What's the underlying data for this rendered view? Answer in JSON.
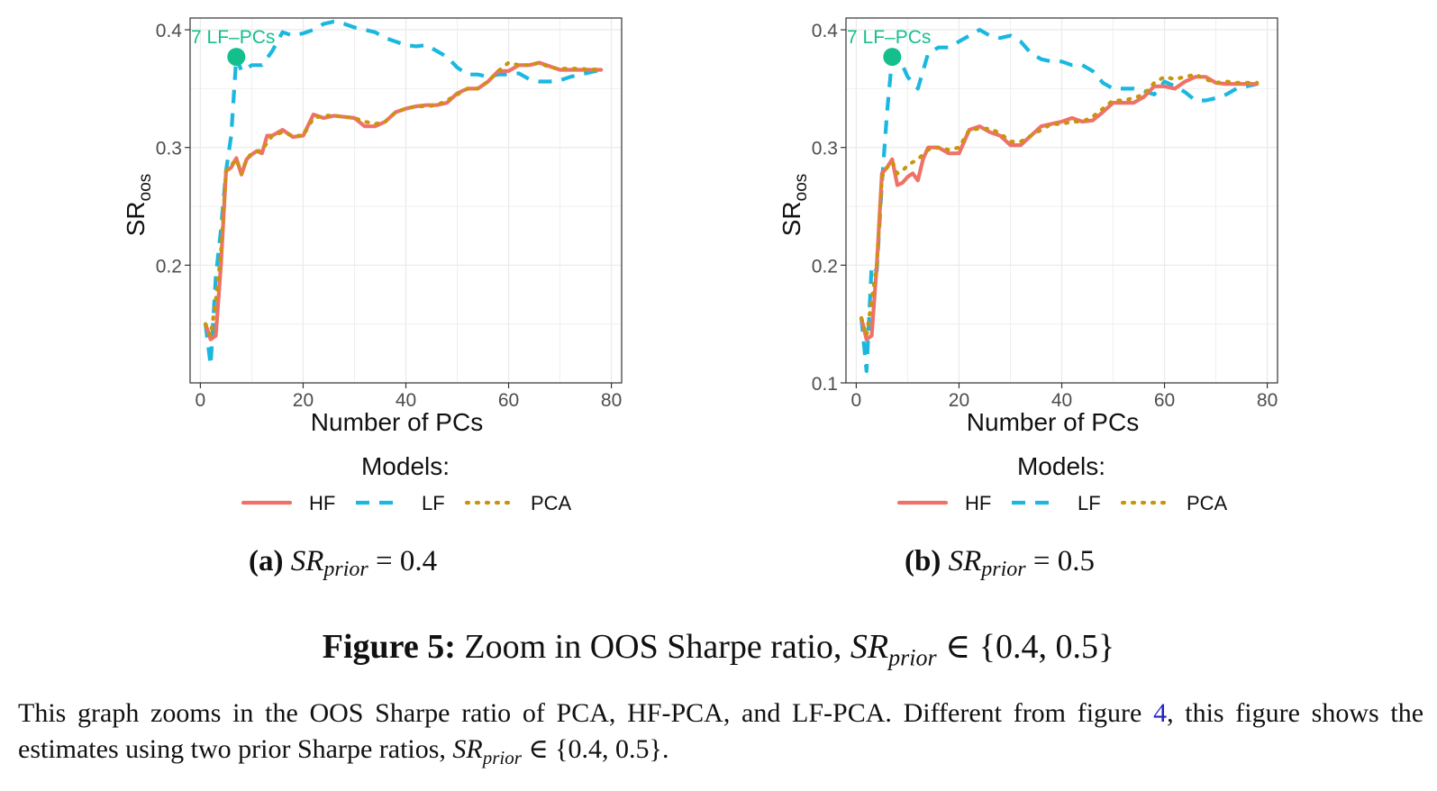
{
  "figure": {
    "label": "Figure 5:",
    "title_text": "Zoom in OOS Sharpe ratio, ",
    "title_math": "SR",
    "title_math_sub": "prior",
    "title_math_tail": " ∈ {0.4, 0.5}",
    "body_part1": "This graph zooms in the OOS Sharpe ratio of PCA, HF-PCA, and LF-PCA. Different from figure ",
    "body_link": "4",
    "body_part2": ", this figure shows the estimates using two prior Sharpe ratios, ",
    "body_math": "SR",
    "body_math_sub": "prior",
    "body_tail": " ∈ {0.4, 0.5}.",
    "link_color": "#2323c9"
  },
  "legend": {
    "title": "Models:",
    "entries": [
      "HF",
      "LF",
      "PCA"
    ]
  },
  "colors": {
    "HF": "#f07167",
    "LF": "#1ab8e0",
    "PCA": "#c8960c",
    "marker": "#14bf8d",
    "grid": "#ebebeb",
    "panel_border": "#333333"
  },
  "chart_data": [
    {
      "type": "line",
      "subcaption_label": "(a)",
      "subcaption_math": "SR",
      "subcaption_sub": "prior",
      "subcaption_value": " = 0.4",
      "xlabel": "Number of PCs",
      "ylabel": "SR",
      "ylabel_sub": "oos",
      "xlim": [
        -2,
        82
      ],
      "ylim": [
        0.1,
        0.41
      ],
      "xticks": [
        0,
        20,
        40,
        60,
        80
      ],
      "xtick_labels": [
        "0",
        "20",
        "40",
        "60",
        "80"
      ],
      "yticks": [
        0.2,
        0.3,
        0.4
      ],
      "ytick_labels": [
        "0.2",
        "0.3",
        "0.4"
      ],
      "grid": true,
      "legend_position": "bottom",
      "annotation": {
        "text": "7 LF–PCs",
        "x": 7,
        "y": 0.377
      },
      "series": [
        {
          "name": "HF",
          "style": "solid",
          "x": [
            1,
            2,
            3,
            4,
            5,
            6,
            7,
            8,
            9,
            10,
            11,
            12,
            13,
            14,
            16,
            18,
            20,
            22,
            24,
            26,
            28,
            30,
            32,
            34,
            36,
            38,
            40,
            42,
            44,
            46,
            48,
            50,
            52,
            54,
            56,
            58,
            60,
            62,
            64,
            66,
            68,
            70,
            72,
            74,
            76,
            78
          ],
          "y": [
            0.15,
            0.137,
            0.14,
            0.2,
            0.28,
            0.283,
            0.291,
            0.277,
            0.29,
            0.294,
            0.297,
            0.295,
            0.31,
            0.31,
            0.315,
            0.309,
            0.31,
            0.328,
            0.325,
            0.327,
            0.326,
            0.325,
            0.318,
            0.318,
            0.322,
            0.33,
            0.333,
            0.335,
            0.336,
            0.336,
            0.338,
            0.346,
            0.35,
            0.35,
            0.356,
            0.365,
            0.365,
            0.37,
            0.37,
            0.372,
            0.369,
            0.366,
            0.366,
            0.366,
            0.366,
            0.366
          ]
        },
        {
          "name": "LF",
          "style": "dashed",
          "x": [
            1,
            2,
            3,
            4,
            5,
            6,
            7,
            8,
            9,
            10,
            12,
            14,
            16,
            18,
            20,
            22,
            24,
            26,
            28,
            30,
            32,
            34,
            36,
            38,
            40,
            42,
            44,
            46,
            48,
            50,
            52,
            54,
            56,
            58,
            60,
            62,
            64,
            66,
            68,
            70,
            72,
            74,
            76,
            78
          ],
          "y": [
            0.15,
            0.115,
            0.19,
            0.23,
            0.28,
            0.31,
            0.377,
            0.365,
            0.367,
            0.37,
            0.37,
            0.382,
            0.398,
            0.395,
            0.397,
            0.4,
            0.405,
            0.407,
            0.405,
            0.402,
            0.4,
            0.398,
            0.393,
            0.39,
            0.387,
            0.386,
            0.387,
            0.382,
            0.377,
            0.368,
            0.362,
            0.362,
            0.36,
            0.362,
            0.362,
            0.363,
            0.358,
            0.356,
            0.356,
            0.357,
            0.36,
            0.362,
            0.364,
            0.366
          ]
        },
        {
          "name": "PCA",
          "style": "dotted",
          "x": [
            1,
            2,
            3,
            4,
            5,
            6,
            7,
            8,
            9,
            10,
            12,
            14,
            16,
            18,
            20,
            22,
            24,
            26,
            28,
            30,
            32,
            34,
            36,
            38,
            40,
            42,
            44,
            46,
            48,
            50,
            52,
            54,
            56,
            58,
            60,
            62,
            64,
            66,
            68,
            70,
            72,
            74,
            76,
            78
          ],
          "y": [
            0.15,
            0.14,
            0.17,
            0.21,
            0.28,
            0.285,
            0.29,
            0.278,
            0.29,
            0.295,
            0.298,
            0.31,
            0.313,
            0.31,
            0.31,
            0.325,
            0.327,
            0.327,
            0.326,
            0.325,
            0.322,
            0.32,
            0.322,
            0.33,
            0.333,
            0.335,
            0.335,
            0.336,
            0.34,
            0.345,
            0.35,
            0.35,
            0.356,
            0.365,
            0.372,
            0.37,
            0.37,
            0.372,
            0.368,
            0.367,
            0.367,
            0.367,
            0.366,
            0.367
          ]
        }
      ]
    },
    {
      "type": "line",
      "subcaption_label": "(b)",
      "subcaption_math": "SR",
      "subcaption_sub": "prior",
      "subcaption_value": " = 0.5",
      "xlabel": "Number of PCs",
      "ylabel": "SR",
      "ylabel_sub": "oos",
      "xlim": [
        -2,
        82
      ],
      "ylim": [
        0.1,
        0.41
      ],
      "xticks": [
        0,
        20,
        40,
        60,
        80
      ],
      "xtick_labels": [
        "0",
        "20",
        "40",
        "60",
        "80"
      ],
      "yticks": [
        0.1,
        0.2,
        0.3,
        0.4
      ],
      "ytick_labels": [
        "0.1",
        "0.2",
        "0.3",
        "0.4"
      ],
      "grid": true,
      "legend_position": "bottom",
      "annotation": {
        "text": "7 LF–PCs",
        "x": 7,
        "y": 0.377
      },
      "series": [
        {
          "name": "HF",
          "style": "solid",
          "x": [
            1,
            2,
            3,
            4,
            5,
            6,
            7,
            8,
            9,
            10,
            11,
            12,
            13,
            14,
            16,
            18,
            20,
            22,
            24,
            26,
            28,
            30,
            32,
            34,
            36,
            38,
            40,
            42,
            44,
            46,
            48,
            50,
            52,
            54,
            56,
            58,
            60,
            62,
            64,
            66,
            68,
            70,
            72,
            74,
            76,
            78
          ],
          "y": [
            0.155,
            0.137,
            0.14,
            0.2,
            0.278,
            0.283,
            0.29,
            0.268,
            0.27,
            0.275,
            0.278,
            0.272,
            0.29,
            0.3,
            0.3,
            0.295,
            0.295,
            0.315,
            0.318,
            0.313,
            0.31,
            0.302,
            0.302,
            0.31,
            0.318,
            0.32,
            0.322,
            0.325,
            0.322,
            0.323,
            0.33,
            0.338,
            0.338,
            0.338,
            0.343,
            0.352,
            0.352,
            0.35,
            0.356,
            0.36,
            0.36,
            0.355,
            0.354,
            0.354,
            0.354,
            0.354
          ]
        },
        {
          "name": "LF",
          "style": "dashed",
          "x": [
            1,
            2,
            3,
            4,
            5,
            6,
            7,
            8,
            9,
            10,
            12,
            14,
            16,
            18,
            20,
            22,
            24,
            26,
            28,
            30,
            32,
            34,
            36,
            38,
            40,
            42,
            44,
            46,
            48,
            50,
            52,
            54,
            56,
            58,
            60,
            62,
            64,
            66,
            68,
            70,
            72,
            74,
            76,
            78
          ],
          "y": [
            0.155,
            0.11,
            0.2,
            0.195,
            0.27,
            0.33,
            0.377,
            0.375,
            0.37,
            0.36,
            0.35,
            0.38,
            0.385,
            0.385,
            0.39,
            0.395,
            0.4,
            0.395,
            0.393,
            0.395,
            0.39,
            0.38,
            0.375,
            0.373,
            0.373,
            0.37,
            0.37,
            0.365,
            0.355,
            0.35,
            0.35,
            0.35,
            0.348,
            0.345,
            0.356,
            0.352,
            0.347,
            0.34,
            0.34,
            0.342,
            0.345,
            0.35,
            0.352,
            0.354
          ]
        },
        {
          "name": "PCA",
          "style": "dotted",
          "x": [
            1,
            2,
            3,
            4,
            5,
            6,
            7,
            8,
            9,
            10,
            12,
            14,
            16,
            18,
            20,
            22,
            24,
            26,
            28,
            30,
            32,
            34,
            36,
            38,
            40,
            42,
            44,
            46,
            48,
            50,
            52,
            54,
            56,
            58,
            60,
            62,
            64,
            66,
            68,
            70,
            72,
            74,
            76,
            78
          ],
          "y": [
            0.155,
            0.14,
            0.17,
            0.2,
            0.275,
            0.283,
            0.288,
            0.278,
            0.28,
            0.285,
            0.29,
            0.298,
            0.3,
            0.298,
            0.3,
            0.315,
            0.316,
            0.316,
            0.312,
            0.305,
            0.305,
            0.31,
            0.315,
            0.32,
            0.32,
            0.322,
            0.322,
            0.326,
            0.333,
            0.34,
            0.34,
            0.342,
            0.345,
            0.355,
            0.36,
            0.358,
            0.36,
            0.362,
            0.358,
            0.355,
            0.356,
            0.355,
            0.355,
            0.355
          ]
        }
      ]
    }
  ]
}
